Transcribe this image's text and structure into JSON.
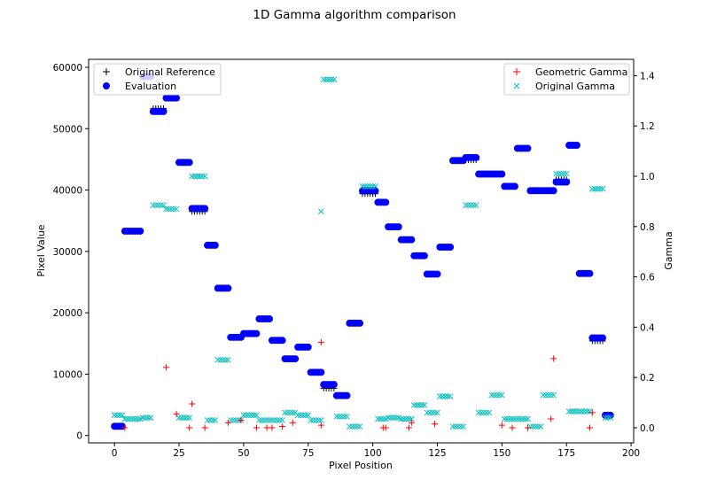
{
  "chart_data": {
    "type": "scatter",
    "title": "1D Gamma algorithm comparison",
    "xlabel": "Pixel Position",
    "ylabel": "Pixel Value",
    "y2label": "Gamma",
    "xlim": [
      -10,
      201
    ],
    "ylim": [
      -1200,
      61300
    ],
    "y2lim": [
      -0.06,
      1.465
    ],
    "xticks": [
      0,
      25,
      50,
      75,
      100,
      125,
      150,
      175,
      200
    ],
    "yticks": [
      0,
      10000,
      20000,
      30000,
      40000,
      50000,
      60000
    ],
    "y2ticks": [
      0.0,
      0.2,
      0.4,
      0.6,
      0.8,
      1.0,
      1.2,
      1.4
    ],
    "legend_left": {
      "placement": "top-left",
      "entries": [
        {
          "label": "Original Reference",
          "marker": "plus",
          "color": "#000000"
        },
        {
          "label": "Evaluation",
          "marker": "circle",
          "color": "#0000ff"
        }
      ]
    },
    "legend_right": {
      "placement": "top-right",
      "entries": [
        {
          "label": "Geometric Gamma",
          "marker": "plus",
          "color": "#ff0000"
        },
        {
          "label": "Original Gamma",
          "marker": "x",
          "color": "#00bfbf"
        }
      ]
    },
    "steps": [
      [
        0,
        4,
        1500
      ],
      [
        4,
        11,
        33300
      ],
      [
        11,
        15,
        58500
      ],
      [
        15,
        20,
        52800
      ],
      [
        20,
        25,
        55000
      ],
      [
        25,
        30,
        44500
      ],
      [
        30,
        36,
        37000
      ],
      [
        36,
        40,
        31000
      ],
      [
        40,
        45,
        24000
      ],
      [
        45,
        50,
        16000
      ],
      [
        50,
        56,
        16600
      ],
      [
        56,
        61,
        19000
      ],
      [
        61,
        66,
        15500
      ],
      [
        66,
        71,
        12500
      ],
      [
        71,
        76,
        14400
      ],
      [
        76,
        81,
        10300
      ],
      [
        81,
        86,
        8300
      ],
      [
        86,
        91,
        6500
      ],
      [
        91,
        96,
        18300
      ],
      [
        96,
        102,
        39900
      ],
      [
        102,
        106,
        38000
      ],
      [
        106,
        111,
        34000
      ],
      [
        111,
        116,
        31900
      ],
      [
        116,
        121,
        29300
      ],
      [
        121,
        126,
        26300
      ],
      [
        126,
        131,
        30700
      ],
      [
        131,
        136,
        44800
      ],
      [
        136,
        141,
        45300
      ],
      [
        141,
        146,
        42600
      ],
      [
        146,
        151,
        42600
      ],
      [
        151,
        156,
        40600
      ],
      [
        156,
        161,
        46800
      ],
      [
        161,
        166,
        39900
      ],
      [
        166,
        171,
        39900
      ],
      [
        171,
        176,
        41300
      ],
      [
        176,
        180,
        47300
      ],
      [
        180,
        185,
        26400
      ],
      [
        185,
        190,
        15900
      ],
      [
        190,
        193,
        3300
      ]
    ],
    "reference_offsets": [
      [
        15,
        20,
        500
      ],
      [
        30,
        36,
        -500
      ],
      [
        81,
        86,
        -600
      ],
      [
        96,
        102,
        -500
      ],
      [
        136,
        141,
        -400
      ],
      [
        171,
        176,
        400
      ],
      [
        185,
        190,
        -500
      ]
    ],
    "original_gamma_runs": [
      [
        0,
        4,
        0.05
      ],
      [
        4,
        11,
        0.035
      ],
      [
        11,
        15,
        0.04
      ],
      [
        15,
        20,
        0.885
      ],
      [
        20,
        25,
        0.87
      ],
      [
        25,
        30,
        0.04
      ],
      [
        30,
        36,
        1.0
      ],
      [
        36,
        40,
        0.03
      ],
      [
        40,
        45,
        0.27
      ],
      [
        45,
        50,
        0.03
      ],
      [
        50,
        56,
        0.05
      ],
      [
        56,
        61,
        0.03
      ],
      [
        61,
        66,
        0.03
      ],
      [
        66,
        71,
        0.06
      ],
      [
        71,
        76,
        0.05
      ],
      [
        76,
        81,
        0.03
      ],
      [
        81,
        86,
        1.385
      ],
      [
        86,
        91,
        0.045
      ],
      [
        91,
        96,
        0.005
      ],
      [
        96,
        102,
        0.96
      ],
      [
        102,
        106,
        0.035
      ],
      [
        106,
        111,
        0.04
      ],
      [
        111,
        116,
        0.035
      ],
      [
        116,
        121,
        0.09
      ],
      [
        121,
        126,
        0.06
      ],
      [
        126,
        131,
        0.125
      ],
      [
        131,
        136,
        0.005
      ],
      [
        136,
        141,
        0.885
      ],
      [
        141,
        146,
        0.06
      ],
      [
        146,
        151,
        0.13
      ],
      [
        151,
        156,
        0.035
      ],
      [
        156,
        161,
        0.035
      ],
      [
        161,
        166,
        0.005
      ],
      [
        166,
        171,
        0.13
      ],
      [
        171,
        176,
        1.01
      ],
      [
        176,
        180,
        0.065
      ],
      [
        180,
        185,
        0.065
      ],
      [
        185,
        190,
        0.95
      ],
      [
        190,
        193,
        0.04
      ]
    ],
    "original_gamma_extra": [
      [
        80,
        0.86
      ]
    ],
    "geometric_gamma_points": [
      [
        4,
        0.0
      ],
      [
        20,
        0.24
      ],
      [
        24,
        0.055
      ],
      [
        29,
        0.0
      ],
      [
        30,
        0.095
      ],
      [
        35,
        0.0
      ],
      [
        44,
        0.02
      ],
      [
        49,
        0.03
      ],
      [
        55,
        0.0
      ],
      [
        59,
        0.0
      ],
      [
        61,
        0.0
      ],
      [
        65,
        0.005
      ],
      [
        69,
        0.02
      ],
      [
        80,
        0.01
      ],
      [
        80,
        0.34
      ],
      [
        104,
        0.0
      ],
      [
        105,
        0.0
      ],
      [
        114,
        0.0
      ],
      [
        115,
        0.02
      ],
      [
        124,
        0.015
      ],
      [
        150,
        0.01
      ],
      [
        154,
        0.0
      ],
      [
        160,
        0.0
      ],
      [
        169,
        0.035
      ],
      [
        170,
        0.275
      ],
      [
        184,
        0.0
      ],
      [
        185,
        0.06
      ]
    ]
  }
}
